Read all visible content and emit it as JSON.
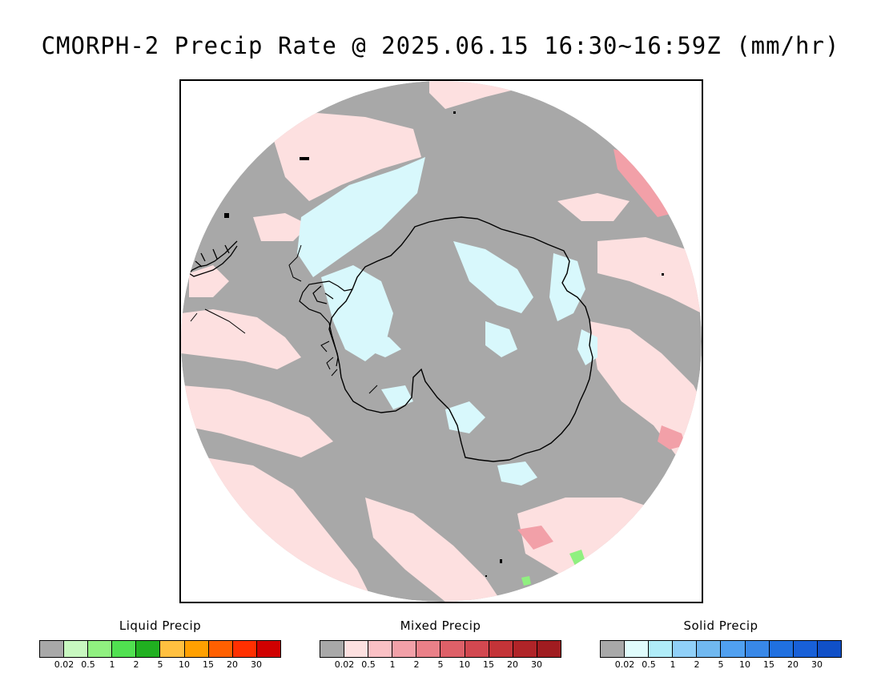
{
  "title": "CMORPH-2 Precip Rate @ 2025.06.15 16:30~16:59Z (mm/hr)",
  "map": {
    "projection": "south polar stereographic",
    "colors": {
      "background": "#ffffff",
      "no_precip": "#a8a8a8",
      "light_mixed": "#fde0e0",
      "light_solid": "#d8f8fc",
      "mid_mixed": "#f2a0a8",
      "coastline": "#000000"
    }
  },
  "legends": [
    {
      "title": "Liquid Precip",
      "colors": [
        "#a8a8a8",
        "#c8f8c0",
        "#90f080",
        "#50e050",
        "#20b020",
        "#ffc040",
        "#ffa000",
        "#ff6000",
        "#ff3000",
        "#d00000"
      ],
      "labels": [
        "0.02",
        "0.5",
        "1",
        "2",
        "5",
        "10",
        "15",
        "20",
        "30"
      ]
    },
    {
      "title": "Mixed Precip",
      "colors": [
        "#a8a8a8",
        "#fde0e0",
        "#fac0c4",
        "#f2a0a8",
        "#ea8088",
        "#de6068",
        "#d24850",
        "#c43438",
        "#b02428",
        "#a01c20"
      ],
      "labels": [
        "0.02",
        "0.5",
        "1",
        "2",
        "5",
        "10",
        "15",
        "20",
        "30"
      ]
    },
    {
      "title": "Solid Precip",
      "colors": [
        "#a8a8a8",
        "#e0fcfc",
        "#b0ecf8",
        "#90d0f8",
        "#70b8f0",
        "#50a0f0",
        "#3888e8",
        "#2070e0",
        "#1860d8",
        "#1050c8"
      ],
      "labels": [
        "0.02",
        "0.5",
        "1",
        "2",
        "5",
        "10",
        "15",
        "20",
        "30"
      ]
    }
  ]
}
